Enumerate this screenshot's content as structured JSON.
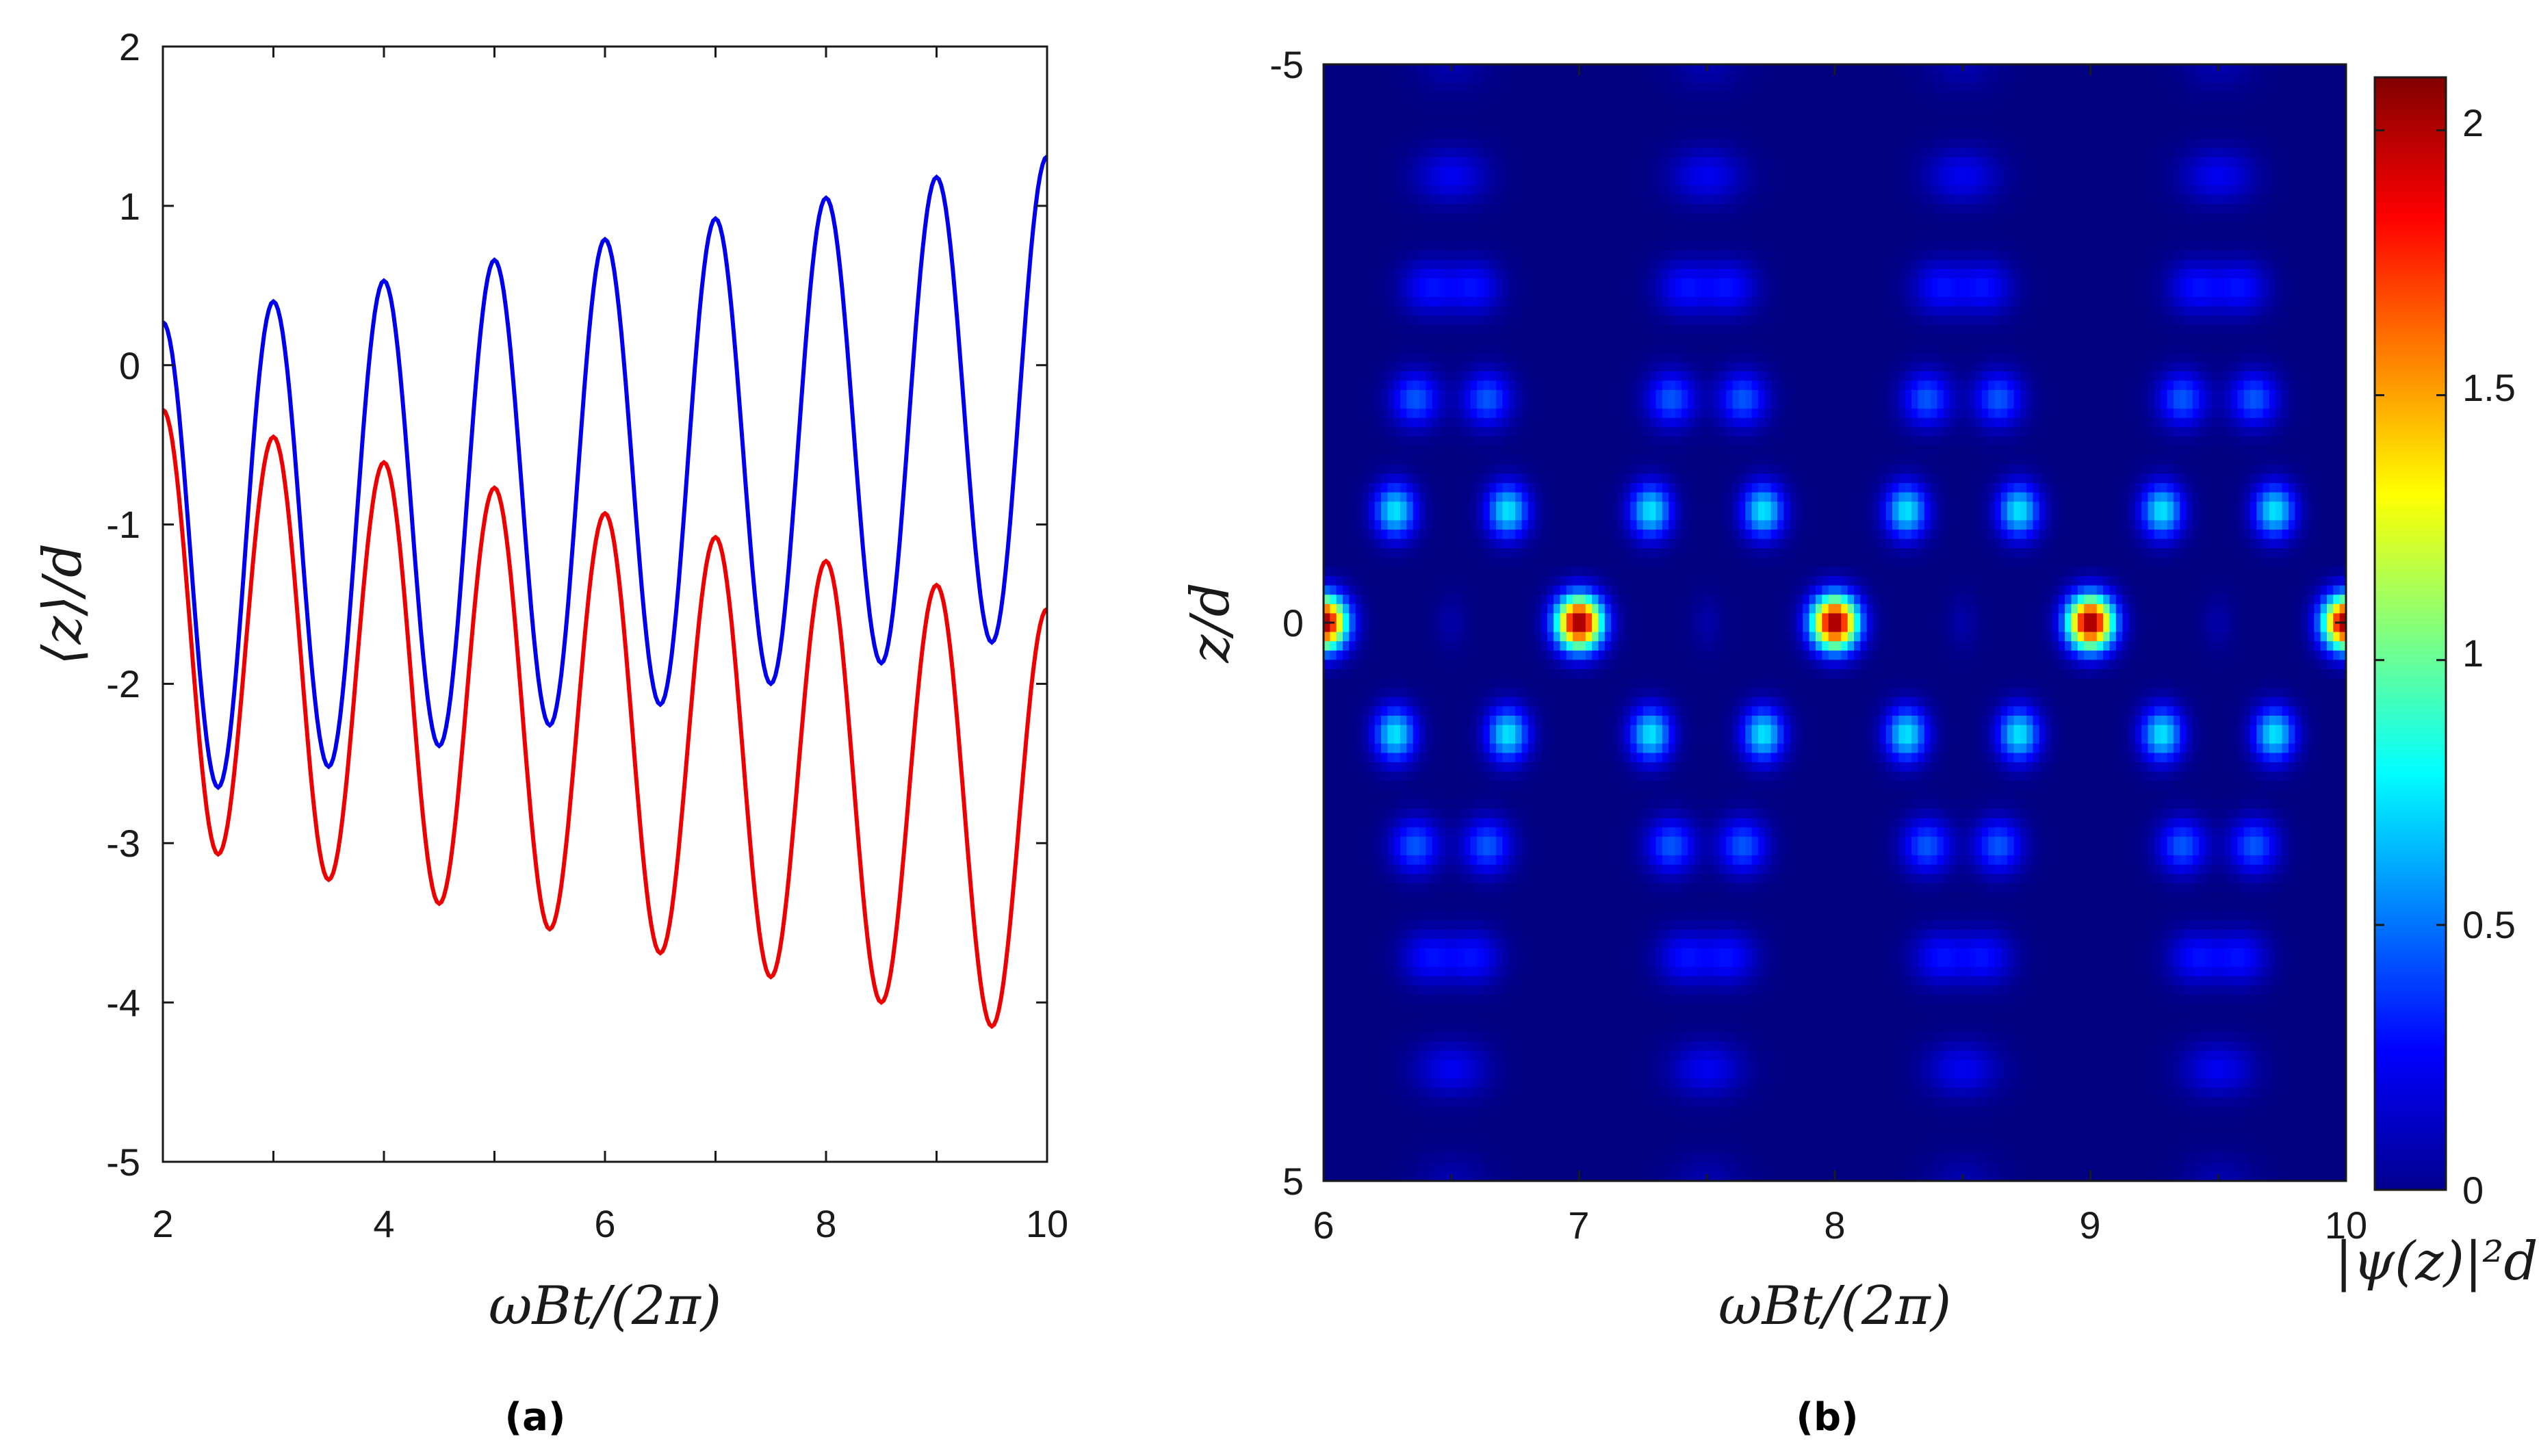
{
  "chart_data": [
    {
      "type": "line",
      "panel_label": "(a)",
      "xlabel": "ωBt/(2π)",
      "ylabel": "⟨z⟩/d",
      "xlim": [
        2,
        10
      ],
      "ylim": [
        -5,
        2
      ],
      "x_ticks": [
        "2",
        "4",
        "6",
        "8",
        "10"
      ],
      "y_ticks": [
        "2",
        "1",
        "0",
        "-1",
        "-2",
        "-3",
        "-4",
        "-5"
      ],
      "grid": false,
      "series": [
        {
          "color": "#0000ee",
          "x": [
            2.0,
            2.5,
            3.0,
            3.5,
            4.0,
            4.5,
            5.0,
            5.5,
            6.0,
            6.5,
            7.0,
            7.5,
            8.0,
            8.5,
            9.0,
            9.5,
            10.0
          ],
          "y": [
            0.27,
            -2.65,
            0.4,
            -2.52,
            0.53,
            -2.39,
            0.66,
            -2.26,
            0.79,
            -2.13,
            0.92,
            -2.0,
            1.05,
            -1.87,
            1.18,
            -1.74,
            1.31
          ]
        },
        {
          "color": "#ee0000",
          "x": [
            2.0,
            2.5,
            3.0,
            3.5,
            4.0,
            4.5,
            5.0,
            5.5,
            6.0,
            6.5,
            7.0,
            7.5,
            8.0,
            8.5,
            9.0,
            9.5,
            10.0
          ],
          "y": [
            -0.28,
            -3.07,
            -0.45,
            -3.23,
            -0.61,
            -3.38,
            -0.77,
            -3.54,
            -0.93,
            -3.69,
            -1.08,
            -3.84,
            -1.23,
            -4.0,
            -1.38,
            -4.15,
            -1.53
          ]
        }
      ]
    },
    {
      "type": "heatmap",
      "panel_label": "(b)",
      "xlabel": "ωBt/(2π)",
      "ylabel": "z/d",
      "xlim": [
        6,
        10
      ],
      "ylim": [
        -5,
        5
      ],
      "x_ticks": [
        "6",
        "7",
        "8",
        "9",
        "10"
      ],
      "y_ticks": [
        "-5",
        "0",
        "5"
      ],
      "y_axis_inverted": true,
      "colormap": "jet",
      "colorbar": {
        "label": "|ψ(z)|²d",
        "range": [
          0,
          2.1
        ],
        "ticks": [
          "2",
          "1.5",
          "1",
          "0.5",
          "0"
        ]
      },
      "description_of_values": {
        "period": 1,
        "peak_at_z0_integer_times": 2.1,
        "site_peak_intensity_by_abs_z": [
          2.1,
          0.75,
          0.45,
          0.28,
          0.14,
          0.05
        ]
      }
    }
  ]
}
